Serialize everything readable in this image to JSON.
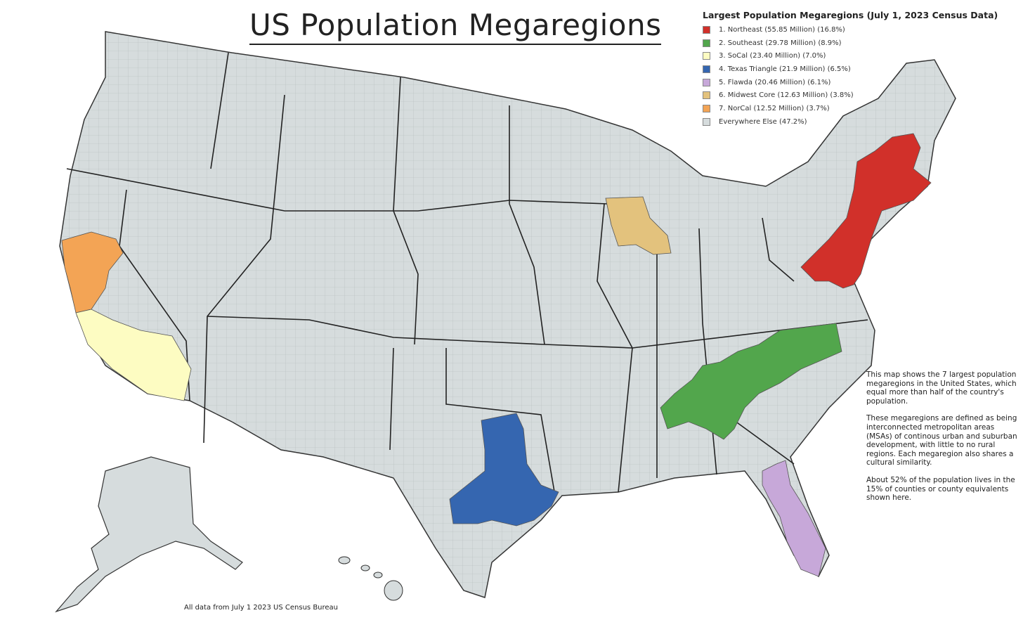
{
  "title": "US Population Megaregions",
  "legend": {
    "heading": "Largest Population Megaregions (July 1, 2023 Census Data)",
    "items": [
      {
        "label": "1. Northeast (55.85 Million) (16.8%)",
        "color": "#d1302a"
      },
      {
        "label": "2. Southeast (29.78 Million) (8.9%)",
        "color": "#52a64c"
      },
      {
        "label": "3. SoCal (23.40 Million) (7.0%)",
        "color": "#fdfcc2"
      },
      {
        "label": "4. Texas Triangle (21.9 Million) (6.5%)",
        "color": "#3566b0"
      },
      {
        "label": "5. Flawda (20.46 Million) (6.1%)",
        "color": "#c7a8d9"
      },
      {
        "label": "6. Midwest Core (12.63 Million) (3.8%)",
        "color": "#e3c27d"
      },
      {
        "label": "7. NorCal (12.52 Million) (3.7%)",
        "color": "#f3a455"
      },
      {
        "label": "Everywhere Else (47.2%)",
        "color": "#d6dcdd"
      }
    ]
  },
  "description": [
    "This map shows the 7 largest population megaregions in the United States, which equal more than half of the country's population.",
    "These megaregions are defined as being interconnected metropolitan areas (MSAs) of continous urban and suburban development, with little to no rural regions. Each megaregion also shares a cultural similarity.",
    "About 52% of the population lives in the 15% of counties or county equivalents shown here."
  ],
  "footer": "All data from July 1 2023 US Census Bureau"
}
